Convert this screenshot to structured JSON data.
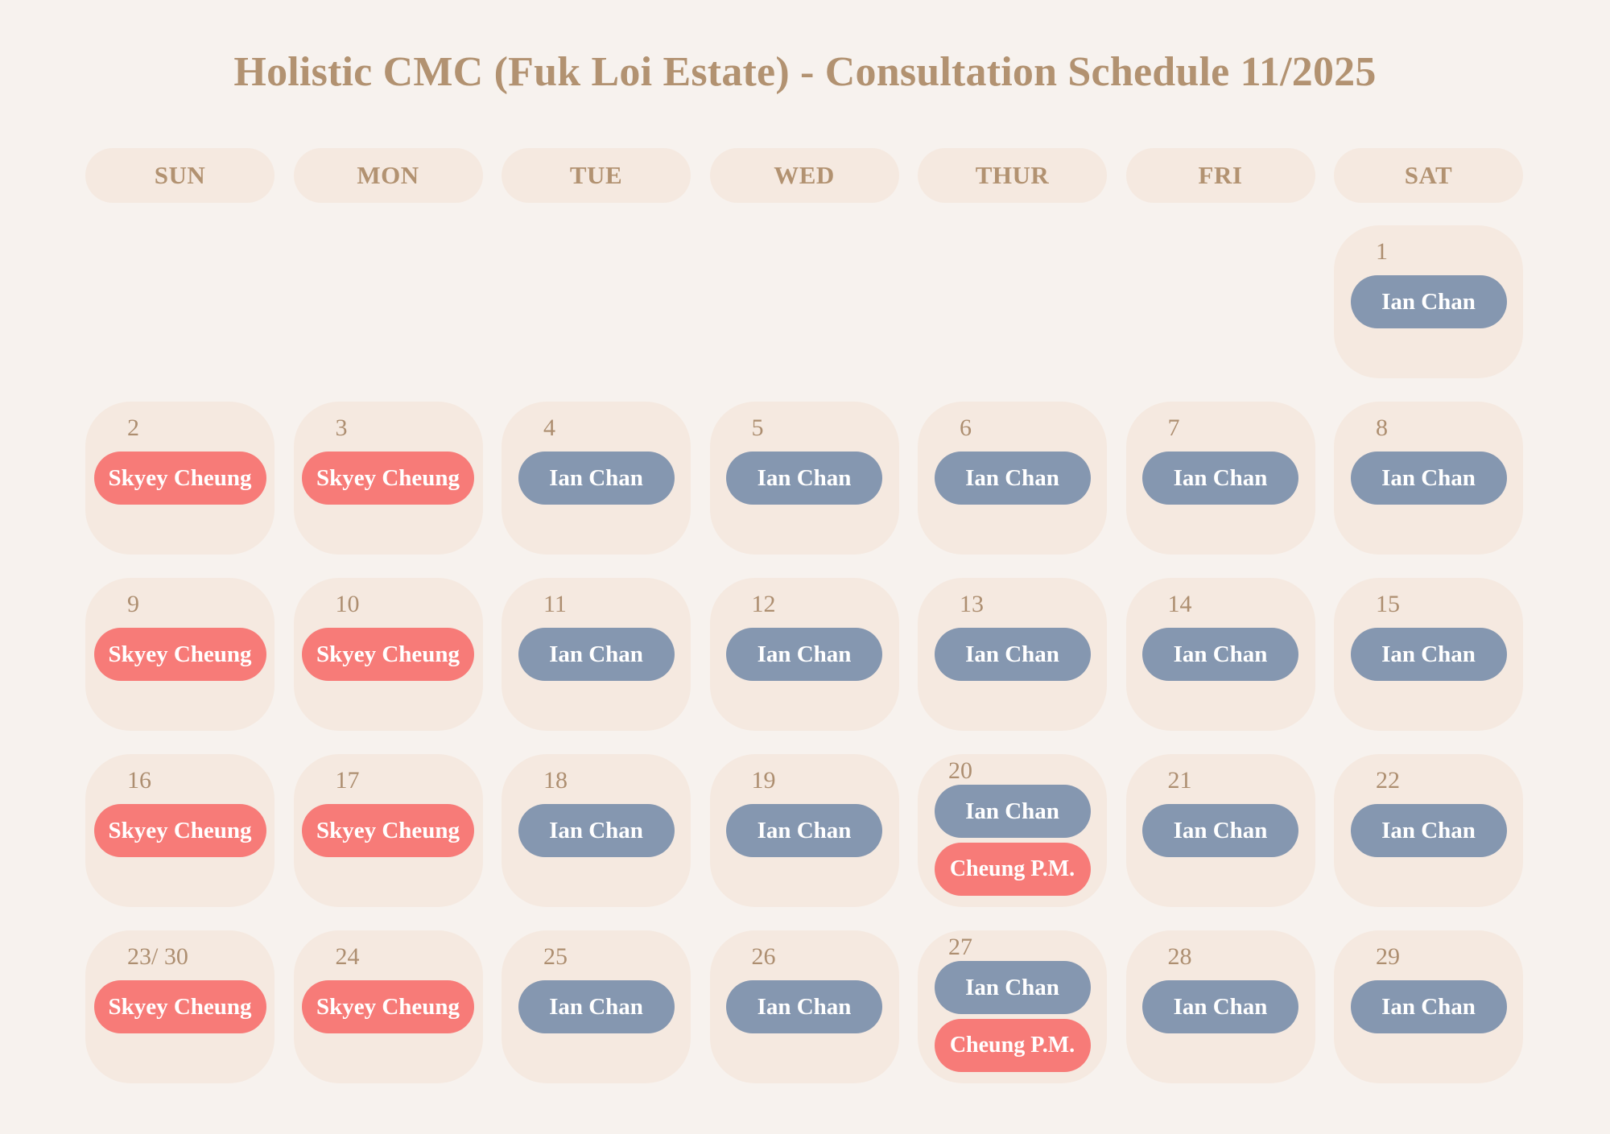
{
  "title": "Holistic CMC (Fuk Loi Estate) - Consultation Schedule 11/2025",
  "colors": {
    "background": "#f7f2ee",
    "cell": "#f5e9e0",
    "heading": "#b29271",
    "ian_chan": "#8597b0",
    "skyey_cheung": "#f77b78",
    "cheung_pm": "#f77b78"
  },
  "weekdays": [
    "SUN",
    "MON",
    "TUE",
    "WED",
    "THUR",
    "FRI",
    "SAT"
  ],
  "weeks": [
    [
      null,
      null,
      null,
      null,
      null,
      null,
      {
        "day": "1",
        "doctors": [
          "Ian Chan"
        ]
      }
    ],
    [
      {
        "day": "2",
        "doctors": [
          "Skyey Cheung"
        ]
      },
      {
        "day": "3",
        "doctors": [
          "Skyey Cheung"
        ]
      },
      {
        "day": "4",
        "doctors": [
          "Ian Chan"
        ]
      },
      {
        "day": "5",
        "doctors": [
          "Ian Chan"
        ]
      },
      {
        "day": "6",
        "doctors": [
          "Ian Chan"
        ]
      },
      {
        "day": "7",
        "doctors": [
          "Ian Chan"
        ]
      },
      {
        "day": "8",
        "doctors": [
          "Ian Chan"
        ]
      }
    ],
    [
      {
        "day": "9",
        "doctors": [
          "Skyey Cheung"
        ]
      },
      {
        "day": "10",
        "doctors": [
          "Skyey Cheung"
        ]
      },
      {
        "day": "11",
        "doctors": [
          "Ian Chan"
        ]
      },
      {
        "day": "12",
        "doctors": [
          "Ian Chan"
        ]
      },
      {
        "day": "13",
        "doctors": [
          "Ian Chan"
        ]
      },
      {
        "day": "14",
        "doctors": [
          "Ian Chan"
        ]
      },
      {
        "day": "15",
        "doctors": [
          "Ian Chan"
        ]
      }
    ],
    [
      {
        "day": "16",
        "doctors": [
          "Skyey Cheung"
        ]
      },
      {
        "day": "17",
        "doctors": [
          "Skyey Cheung"
        ]
      },
      {
        "day": "18",
        "doctors": [
          "Ian Chan"
        ]
      },
      {
        "day": "19",
        "doctors": [
          "Ian Chan"
        ]
      },
      {
        "day": "20",
        "doctors": [
          "Ian Chan",
          "Cheung P.M."
        ]
      },
      {
        "day": "21",
        "doctors": [
          "Ian Chan"
        ]
      },
      {
        "day": "22",
        "doctors": [
          "Ian Chan"
        ]
      }
    ],
    [
      {
        "day": "23/ 30",
        "doctors": [
          "Skyey Cheung"
        ]
      },
      {
        "day": "24",
        "doctors": [
          "Skyey Cheung"
        ]
      },
      {
        "day": "25",
        "doctors": [
          "Ian Chan"
        ]
      },
      {
        "day": "26",
        "doctors": [
          "Ian Chan"
        ]
      },
      {
        "day": "27",
        "doctors": [
          "Ian Chan",
          "Cheung P.M."
        ]
      },
      {
        "day": "28",
        "doctors": [
          "Ian Chan"
        ]
      },
      {
        "day": "29",
        "doctors": [
          "Ian Chan"
        ]
      }
    ]
  ]
}
